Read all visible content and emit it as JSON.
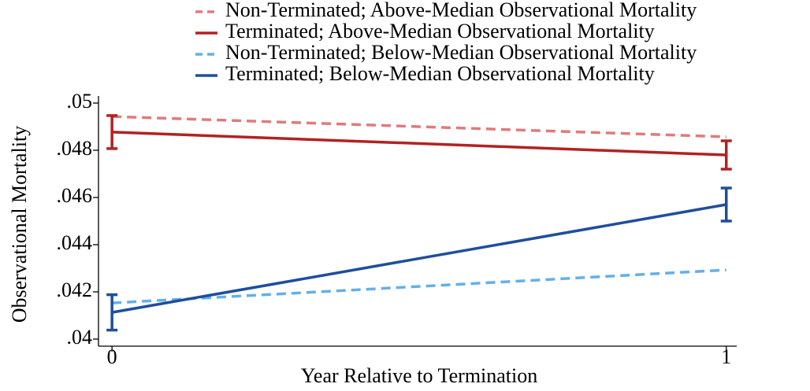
{
  "chart_data": {
    "type": "line",
    "x": [
      0,
      1
    ],
    "xlim": [
      -0.022,
      1.017
    ],
    "xticks": [
      0,
      1
    ],
    "ylim": [
      0.0397,
      0.0503
    ],
    "yticks": [
      {
        "value": 0.04,
        "label": ".04"
      },
      {
        "value": 0.042,
        "label": ".042"
      },
      {
        "value": 0.044,
        "label": ".044"
      },
      {
        "value": 0.046,
        "label": ".046"
      },
      {
        "value": 0.048,
        "label": ".048"
      },
      {
        "value": 0.05,
        "label": ".05"
      }
    ],
    "xlabel": "Year Relative to Termination",
    "ylabel": "Observational Mortality",
    "grid": false,
    "series": [
      {
        "name": "Non-Terminated; Above-Median Observational Mortality",
        "color": "#e07b7b",
        "style": "dashed",
        "values": [
          0.04943,
          0.04857
        ]
      },
      {
        "name": "Terminated; Above-Median Observational Mortality",
        "color": "#b22222",
        "style": "solid",
        "values": [
          0.04877,
          0.0478
        ],
        "errors": [
          0.0007,
          0.0006
        ]
      },
      {
        "name": "Non-Terminated; Below-Median Observational Mortality",
        "color": "#63b0ea",
        "style": "dashed",
        "values": [
          0.04153,
          0.04293
        ]
      },
      {
        "name": "Terminated; Below-Median Observational Mortality",
        "color": "#1f4e9c",
        "style": "solid",
        "values": [
          0.04113,
          0.0457
        ],
        "errors": [
          0.00075,
          0.0007
        ]
      }
    ]
  }
}
